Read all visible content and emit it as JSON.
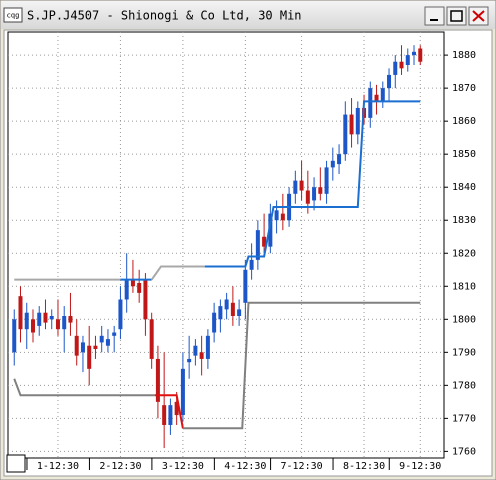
{
  "window": {
    "icon_label": "cqg"
  },
  "chart_data": {
    "type": "candlestick",
    "title": "S.JP.J4507 - Shionogi & Co Ltd, 30 Min",
    "ylim": [
      1758,
      1887
    ],
    "yticks": [
      1760,
      1770,
      1780,
      1790,
      1800,
      1810,
      1820,
      1830,
      1840,
      1850,
      1860,
      1870,
      1880
    ],
    "xlim": [
      -1,
      68.8
    ],
    "xticks": [
      {
        "value": 7,
        "label": "1-12:30"
      },
      {
        "value": 17,
        "label": "2-12:30"
      },
      {
        "value": 27,
        "label": "3-12:30"
      },
      {
        "value": 37,
        "label": "4-12:30"
      },
      {
        "value": 46,
        "label": "7-12:30"
      },
      {
        "value": 56,
        "label": "8-12:30"
      },
      {
        "value": 65,
        "label": "9-12:30"
      }
    ],
    "grid": true,
    "up_color": "#1c56c8",
    "down_color": "#c01818",
    "open": [
      1790,
      1807,
      1797,
      1800,
      1798,
      1802,
      1800,
      1800,
      1797,
      1801,
      1795,
      1790,
      1792,
      1792,
      1793,
      1792,
      1795,
      1797,
      1806,
      1812,
      1811,
      1812,
      1800,
      1788,
      1774,
      1768,
      1775,
      1771,
      1787,
      1789,
      1790,
      1788,
      1796,
      1800,
      1803,
      1805,
      1801,
      1805,
      1815,
      1818,
      1825,
      1822,
      1830,
      1832,
      1830,
      1838,
      1842,
      1839,
      1836,
      1840,
      1838,
      1846,
      1847,
      1850,
      1862,
      1856,
      1864,
      1861,
      1868,
      1866,
      1870,
      1874,
      1878,
      1877,
      1880,
      1882
    ],
    "high": [
      1803,
      1810,
      1805,
      1803,
      1804,
      1806,
      1803,
      1806,
      1804,
      1808,
      1800,
      1795,
      1798,
      1795,
      1798,
      1797,
      1798,
      1810,
      1820,
      1818,
      1815,
      1814,
      1802,
      1792,
      1790,
      1776,
      1778,
      1790,
      1795,
      1794,
      1795,
      1797,
      1805,
      1806,
      1808,
      1810,
      1806,
      1818,
      1823,
      1830,
      1832,
      1835,
      1836,
      1838,
      1840,
      1845,
      1848,
      1845,
      1843,
      1846,
      1848,
      1852,
      1853,
      1866,
      1867,
      1866,
      1868,
      1872,
      1871,
      1872,
      1876,
      1880,
      1883,
      1882,
      1883,
      1883
    ],
    "low": [
      1786,
      1793,
      1791,
      1793,
      1795,
      1797,
      1797,
      1795,
      1790,
      1795,
      1786,
      1784,
      1780,
      1788,
      1790,
      1790,
      1790,
      1794,
      1802,
      1808,
      1805,
      1795,
      1785,
      1770,
      1761,
      1765,
      1768,
      1769,
      1782,
      1786,
      1783,
      1785,
      1793,
      1796,
      1800,
      1798,
      1798,
      1800,
      1812,
      1815,
      1820,
      1820,
      1826,
      1827,
      1828,
      1835,
      1836,
      1832,
      1833,
      1836,
      1835,
      1842,
      1844,
      1848,
      1852,
      1853,
      1859,
      1858,
      1862,
      1864,
      1866,
      1870,
      1874,
      1875,
      1877,
      1877
    ],
    "close": [
      1800,
      1797,
      1802,
      1796,
      1802,
      1799,
      1801,
      1797,
      1801,
      1799,
      1789,
      1793,
      1785,
      1791,
      1795,
      1794,
      1796,
      1806,
      1812,
      1810,
      1808,
      1800,
      1788,
      1775,
      1768,
      1774,
      1771,
      1785,
      1788,
      1792,
      1788,
      1795,
      1802,
      1804,
      1806,
      1801,
      1803,
      1815,
      1818,
      1827,
      1822,
      1832,
      1833,
      1830,
      1838,
      1842,
      1839,
      1835,
      1840,
      1838,
      1846,
      1848,
      1850,
      1862,
      1856,
      1864,
      1861,
      1870,
      1866,
      1870,
      1874,
      1878,
      1876,
      1880,
      1881,
      1878
    ],
    "lines": [
      {
        "color": "#a8a8a8",
        "x": [
          0,
          17
        ],
        "values": [
          1812,
          1812
        ]
      },
      {
        "color": "#1a6fd0",
        "x": [
          17,
          22
        ],
        "values": [
          1812,
          1812
        ]
      },
      {
        "color": "#a8a8a8",
        "x": [
          22,
          23.5,
          30.5
        ],
        "values": [
          1812,
          1816,
          1816
        ]
      },
      {
        "color": "#1a6fd0",
        "x": [
          30.5,
          37,
          37.5,
          40,
          41.5,
          55,
          56,
          65
        ],
        "values": [
          1816,
          1816,
          1819,
          1819,
          1834,
          1834,
          1866,
          1866
        ]
      },
      {
        "color": "#808080",
        "x": [
          0,
          1,
          22.5
        ],
        "values": [
          1782,
          1777,
          1777
        ]
      },
      {
        "color": "#e01010",
        "x": [
          22.5,
          26,
          27
        ],
        "values": [
          1777,
          1777,
          1767
        ]
      },
      {
        "color": "#808080",
        "x": [
          27,
          36.5,
          37.5,
          65
        ],
        "values": [
          1767,
          1767,
          1805,
          1805
        ]
      }
    ]
  }
}
